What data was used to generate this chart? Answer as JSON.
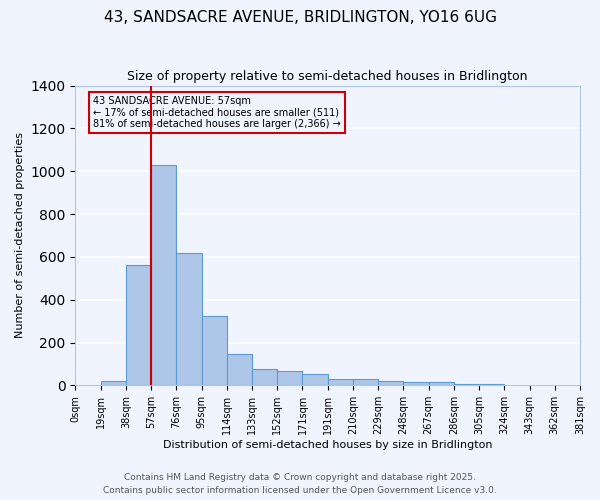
{
  "title": "43, SANDSACRE AVENUE, BRIDLINGTON, YO16 6UG",
  "subtitle": "Size of property relative to semi-detached houses in Bridlington",
  "xlabel": "Distribution of semi-detached houses by size in Bridlington",
  "ylabel": "Number of semi-detached properties",
  "bin_labels": [
    "0sqm",
    "19sqm",
    "38sqm",
    "57sqm",
    "76sqm",
    "95sqm",
    "114sqm",
    "133sqm",
    "152sqm",
    "171sqm",
    "191sqm",
    "210sqm",
    "229sqm",
    "248sqm",
    "267sqm",
    "286sqm",
    "305sqm",
    "324sqm",
    "343sqm",
    "362sqm",
    "381sqm"
  ],
  "bar_values": [
    0,
    20,
    560,
    1030,
    620,
    325,
    148,
    78,
    68,
    52,
    30,
    30,
    20,
    15,
    15,
    5,
    5,
    0,
    0,
    0
  ],
  "bar_color": "#aec6e8",
  "bar_edge_color": "#5b9bd5",
  "vline_x": 3,
  "vline_color": "#cc0000",
  "annotation_title": "43 SANDSACRE AVENUE: 57sqm",
  "annotation_line1": "← 17% of semi-detached houses are smaller (511)",
  "annotation_line2": "81% of semi-detached houses are larger (2,366) →",
  "annotation_box_color": "#cc0000",
  "ylim": [
    0,
    1400
  ],
  "yticks": [
    0,
    200,
    400,
    600,
    800,
    1000,
    1200,
    1400
  ],
  "footnote1": "Contains HM Land Registry data © Crown copyright and database right 2025.",
  "footnote2": "Contains public sector information licensed under the Open Government Licence v3.0.",
  "bg_color": "#f0f4ff",
  "grid_color": "#ffffff"
}
